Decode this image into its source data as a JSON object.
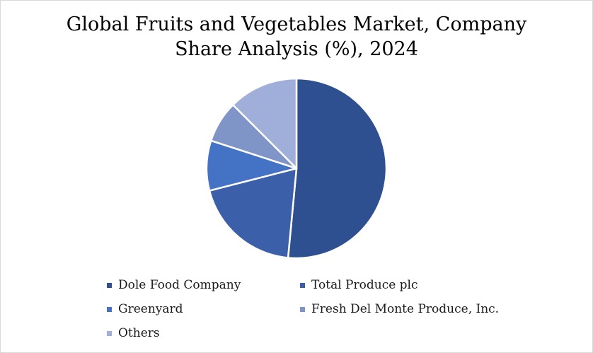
{
  "chart_data": {
    "type": "pie",
    "title": "Global Fruits and Vegetables Market, Company Share Analysis (%), 2024",
    "title_lines": [
      "Global Fruits and Vegetables Market, Company",
      "Share Analysis (%), 2024"
    ],
    "categories": [
      "Dole Food Company",
      "Total Produce plc",
      "Greenyard",
      "Fresh Del Monte Produce, Inc.",
      "Others"
    ],
    "values": [
      51.5,
      19.5,
      9.0,
      7.5,
      12.5
    ],
    "colors": [
      "#2f5090",
      "#3b5fa8",
      "#4472c4",
      "#7f95c8",
      "#9fafd9"
    ],
    "start_angle_deg": 0,
    "direction": "clockwise",
    "legend_position": "bottom"
  }
}
